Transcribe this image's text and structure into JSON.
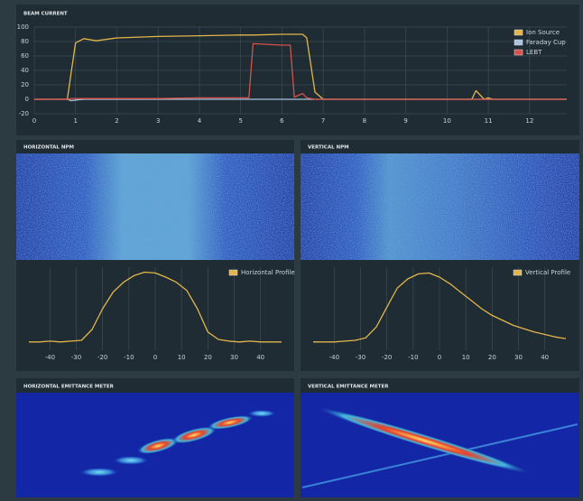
{
  "chart_data": [
    {
      "type": "line",
      "title": "BEAM CURRENT",
      "x": [
        0,
        0.8,
        0.9,
        1.0,
        1.2,
        1.5,
        2,
        3,
        4,
        5,
        5.2,
        5.3,
        6,
        6.2,
        6.3,
        6.5,
        6.6,
        6.8,
        7,
        10.6,
        10.7,
        10.9,
        11,
        11.1,
        12.9
      ],
      "series": [
        {
          "name": "Ion Source",
          "color": "#e3b54a",
          "values": [
            0,
            0,
            40,
            78,
            84,
            81,
            85,
            87,
            88,
            89,
            89,
            89,
            90,
            90,
            90,
            90,
            85,
            10,
            0,
            0,
            12,
            0,
            2,
            0,
            0
          ]
        },
        {
          "name": "Faraday Cup",
          "color": "#a9c4dc",
          "values": [
            0,
            0,
            -2,
            -1,
            0,
            0,
            0,
            0,
            0,
            0,
            0,
            0,
            0,
            0,
            0,
            0,
            0,
            0,
            0,
            0,
            0,
            0,
            0,
            0,
            0
          ]
        },
        {
          "name": "LEBT",
          "color": "#d9504a",
          "values": [
            0,
            0,
            1,
            1,
            1,
            1,
            1,
            1,
            2,
            2,
            2,
            77,
            75,
            75,
            3,
            8,
            2,
            0,
            0,
            0,
            0,
            0,
            0,
            0,
            0
          ]
        }
      ],
      "xlim": [
        0,
        12.9
      ],
      "xticks": [
        0,
        1,
        2,
        3,
        4,
        5,
        6,
        7,
        8,
        9,
        10,
        11,
        12
      ],
      "ylim": [
        -20,
        100
      ],
      "yticks": [
        -20,
        0,
        20,
        40,
        60,
        80,
        100
      ],
      "xgrid": true,
      "ygrid": true,
      "legend": "upper right"
    },
    {
      "type": "line",
      "title": "HORIZONTAL NPM",
      "x": [
        -48,
        -44,
        -40,
        -36,
        -32,
        -28,
        -24,
        -20,
        -16,
        -12,
        -8,
        -4,
        0,
        4,
        8,
        12,
        16,
        20,
        24,
        28,
        32,
        36,
        40,
        44,
        48
      ],
      "series": [
        {
          "name": "Horizontal Profile",
          "color": "#e3b54a",
          "values": [
            10,
            10,
            11,
            10,
            11,
            12,
            25,
            50,
            70,
            82,
            90,
            94,
            93,
            88,
            82,
            72,
            50,
            22,
            13,
            11,
            10,
            11,
            10,
            10,
            10
          ]
        }
      ],
      "xlim": [
        -48,
        48
      ],
      "xticks": [
        -40,
        -30,
        -20,
        -10,
        0,
        10,
        20,
        30,
        40
      ],
      "ylim": [
        0,
        100
      ],
      "xgrid": true,
      "ygrid": false,
      "legend": "upper right"
    },
    {
      "type": "line",
      "title": "VERTICAL NPM",
      "x": [
        -48,
        -44,
        -40,
        -36,
        -32,
        -28,
        -24,
        -20,
        -16,
        -12,
        -8,
        -4,
        0,
        4,
        8,
        12,
        16,
        20,
        24,
        28,
        32,
        36,
        40,
        44,
        48
      ],
      "series": [
        {
          "name": "Vertical Profile",
          "color": "#e3b54a",
          "values": [
            10,
            10,
            10,
            11,
            12,
            15,
            28,
            52,
            75,
            86,
            92,
            93,
            88,
            80,
            70,
            60,
            50,
            42,
            36,
            30,
            26,
            22,
            19,
            16,
            14
          ]
        }
      ],
      "xlim": [
        -48,
        48
      ],
      "xticks": [
        -40,
        -30,
        -20,
        -10,
        0,
        10,
        20,
        30,
        40
      ],
      "ylim": [
        0,
        100
      ],
      "xgrid": true,
      "ygrid": false,
      "legend": "upper right"
    }
  ],
  "panels": {
    "horizontal_emittance": {
      "title": "HORIZONTAL EMITTANCE METER"
    },
    "vertical_emittance": {
      "title": "VERTICAL EMITTANCE METER"
    }
  }
}
